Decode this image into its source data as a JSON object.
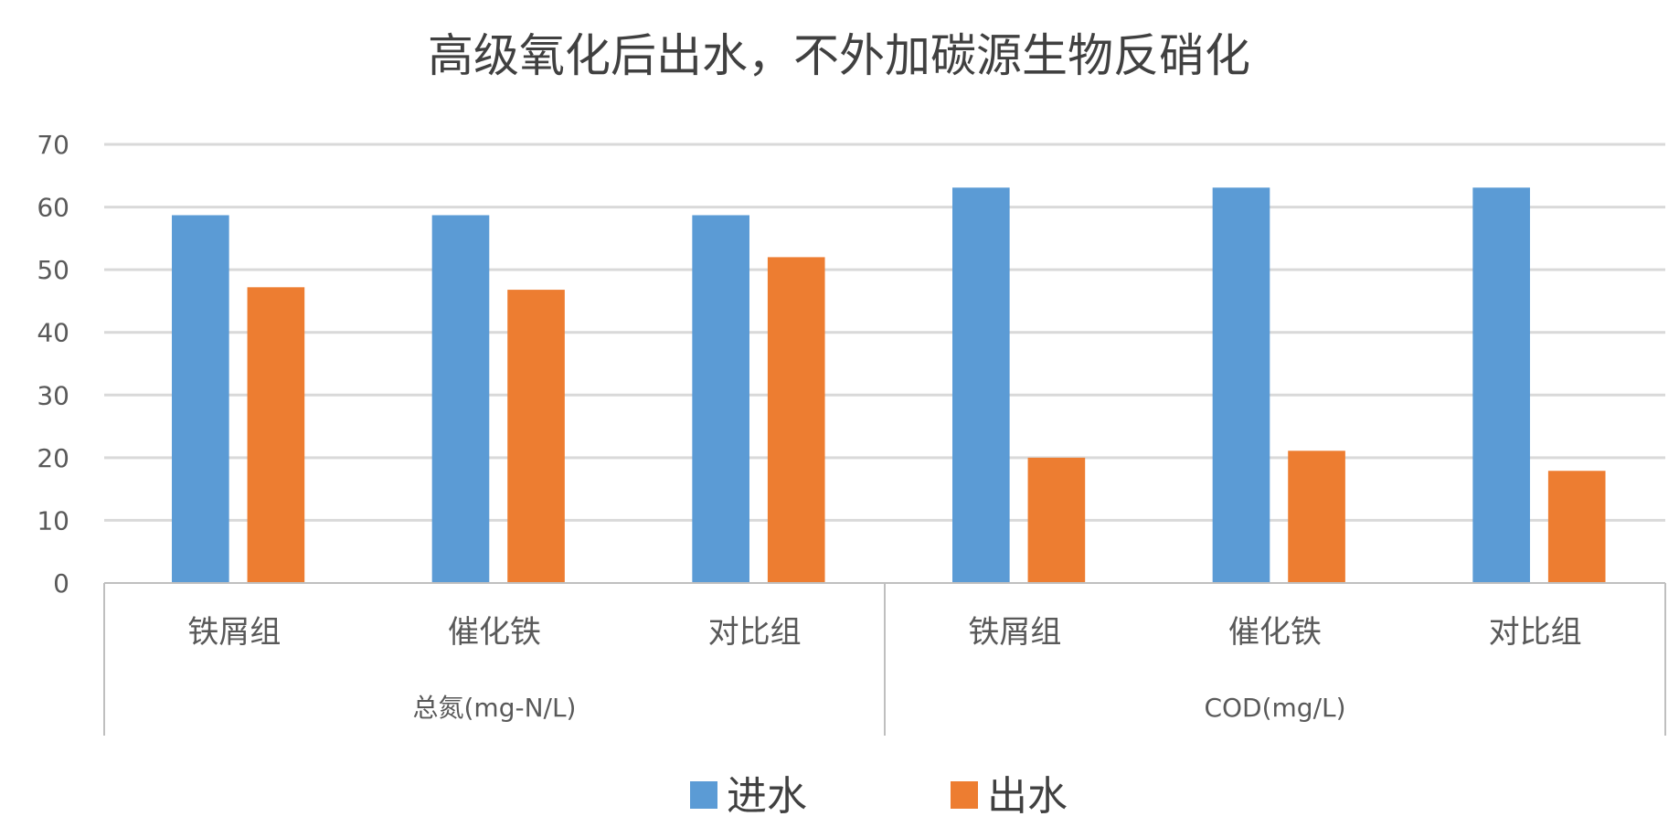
{
  "chart_data": {
    "type": "bar",
    "title": "高级氧化后出水，不外加碳源生物反硝化",
    "groups": [
      {
        "label": "总氮(mg-N/L)",
        "categories": [
          "铁屑组",
          "催化铁",
          "对比组"
        ]
      },
      {
        "label": "COD(mg/L)",
        "categories": [
          "铁屑组",
          "催化铁",
          "对比组"
        ]
      }
    ],
    "series": [
      {
        "name": "进水",
        "color": "#5b9bd5",
        "values": [
          58.7,
          58.7,
          58.7,
          63.1,
          63.1,
          63.1
        ]
      },
      {
        "name": "出水",
        "color": "#ed7d31",
        "values": [
          47.2,
          46.8,
          52.0,
          20.0,
          21.1,
          17.9
        ]
      }
    ],
    "ylim": [
      0,
      70
    ],
    "yticks": [
      0,
      10,
      20,
      30,
      40,
      50,
      60,
      70
    ],
    "grid": true,
    "legend": "bottom"
  }
}
